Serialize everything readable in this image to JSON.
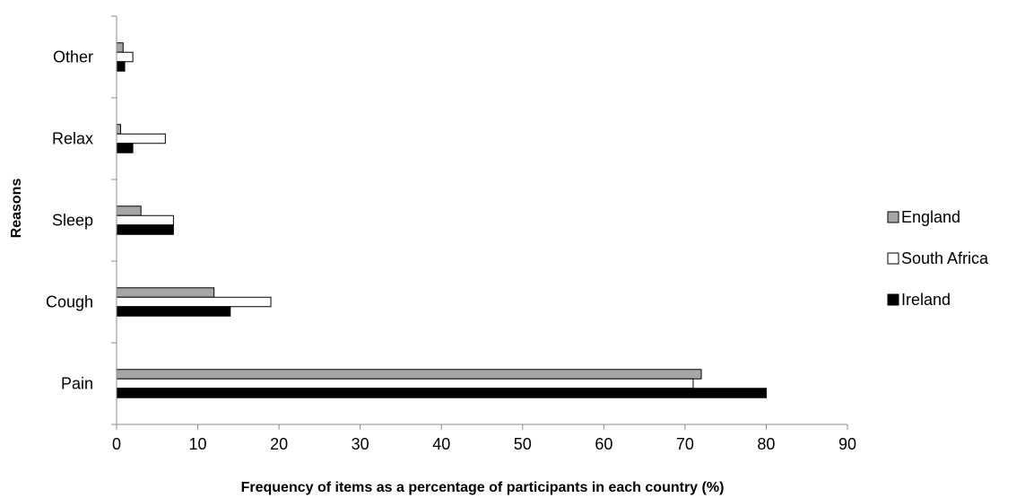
{
  "chart_data": {
    "type": "bar",
    "orientation": "horizontal",
    "title": "",
    "xlabel": "Frequency of items as a percentage of participants in each country (%)",
    "ylabel": "Reasons",
    "xlim": [
      0,
      90
    ],
    "xticks": [
      0,
      10,
      20,
      30,
      40,
      50,
      60,
      70,
      80,
      90
    ],
    "categories": [
      "Pain",
      "Cough",
      "Sleep",
      "Relax",
      "Other"
    ],
    "series": [
      {
        "name": "England",
        "color": "#a6a6a6",
        "values": [
          72,
          12,
          3,
          0.5,
          0.8
        ]
      },
      {
        "name": "South Africa",
        "color": "#ffffff",
        "values": [
          71,
          19,
          7,
          6,
          2
        ]
      },
      {
        "name": "Ireland",
        "color": "#000000",
        "values": [
          80,
          14,
          7,
          2,
          1
        ]
      }
    ],
    "grid": false,
    "legend_position": "right"
  }
}
